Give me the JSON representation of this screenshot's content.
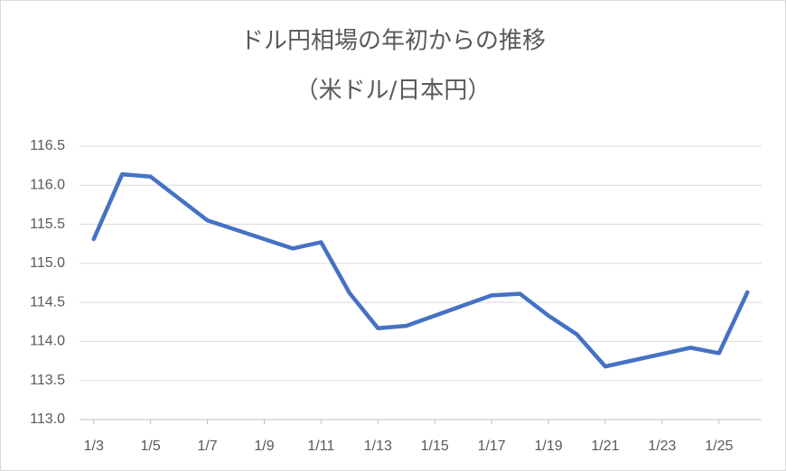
{
  "chart_data": {
    "type": "line",
    "title": "ドル円相場の年初からの推移",
    "subtitle": "（米ドル/日本円）",
    "x": [
      3,
      4,
      5,
      6,
      7,
      10,
      11,
      12,
      13,
      14,
      17,
      18,
      19,
      20,
      21,
      24,
      25,
      26
    ],
    "series": [
      {
        "color": "#4472c4",
        "values": [
          115.31,
          116.14,
          116.11,
          115.83,
          115.55,
          115.19,
          115.27,
          114.62,
          114.17,
          114.2,
          114.59,
          114.61,
          114.33,
          114.09,
          113.68,
          113.92,
          113.85,
          114.63
        ]
      }
    ],
    "xlim": [
      2.5,
      26.5
    ],
    "xticks": [
      {
        "value": 3,
        "label": "1/3"
      },
      {
        "value": 5,
        "label": "1/5"
      },
      {
        "value": 7,
        "label": "1/7"
      },
      {
        "value": 9,
        "label": "1/9"
      },
      {
        "value": 11,
        "label": "1/11"
      },
      {
        "value": 13,
        "label": "1/13"
      },
      {
        "value": 15,
        "label": "1/15"
      },
      {
        "value": 17,
        "label": "1/17"
      },
      {
        "value": 19,
        "label": "1/19"
      },
      {
        "value": 21,
        "label": "1/21"
      },
      {
        "value": 23,
        "label": "1/23"
      },
      {
        "value": 25,
        "label": "1/25"
      }
    ],
    "ylim": [
      113,
      116.5
    ],
    "yticks": [
      {
        "value": 113,
        "label": "113.0"
      },
      113.5,
      {
        "value": 114,
        "label": "114.0"
      },
      114.5,
      {
        "value": 115,
        "label": "115.0"
      },
      115.5,
      {
        "value": 116,
        "label": "116.0"
      },
      116.5
    ],
    "grid": true
  }
}
